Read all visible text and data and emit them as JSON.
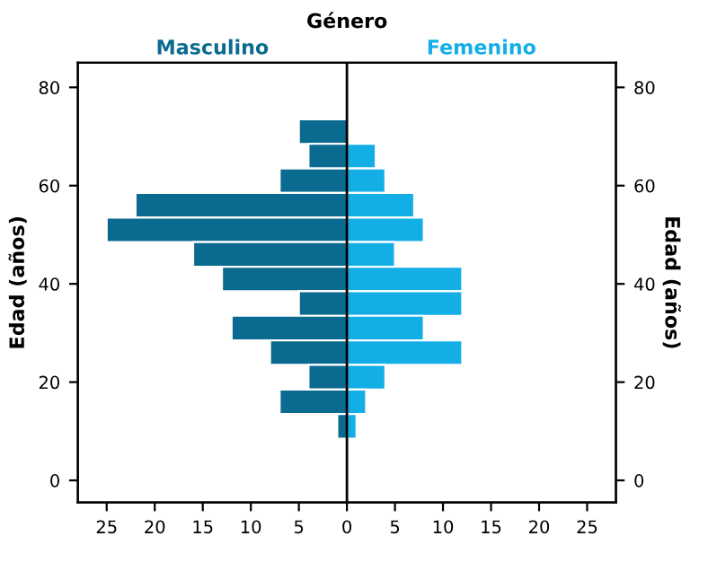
{
  "chart_data": {
    "type": "bar",
    "orientation": "horizontal",
    "title": "Género",
    "ylabel": "Edad (años)",
    "y2label": "Edad (años)",
    "x": [
      71,
      66,
      61,
      56,
      51,
      46,
      41,
      36,
      31,
      26,
      21,
      16,
      11
    ],
    "series": [
      {
        "name": "Masculino",
        "color": "#0a6a8f",
        "values": [
          -5,
          -4,
          -7,
          -22,
          -25,
          -16,
          -13,
          -5,
          -12,
          -8,
          -4,
          -7,
          -1
        ]
      },
      {
        "name": "Femenino",
        "color": "#14aee6",
        "values": [
          null,
          3,
          4,
          7,
          8,
          5,
          12,
          12,
          8,
          12,
          4,
          2,
          1
        ]
      }
    ],
    "xlim": [
      -28,
      28
    ],
    "xticks": [
      {
        "value": -25,
        "label": "25"
      },
      {
        "value": -20,
        "label": "20"
      },
      {
        "value": -15,
        "label": "15"
      },
      {
        "value": -10,
        "label": "10"
      },
      {
        "value": -5,
        "label": "5"
      },
      0,
      5,
      10,
      15,
      20,
      25
    ],
    "ylim": [
      -4.5,
      85
    ],
    "yticks": [
      0,
      20,
      40,
      60,
      80
    ],
    "y2lim": [
      -4.5,
      85
    ],
    "y2ticks": [
      0,
      20,
      40,
      60,
      80
    ],
    "ref_lines": [
      {
        "axis": "x",
        "value": 0,
        "color": "#000000"
      }
    ],
    "grid": false,
    "legend": false,
    "stacked": true
  }
}
